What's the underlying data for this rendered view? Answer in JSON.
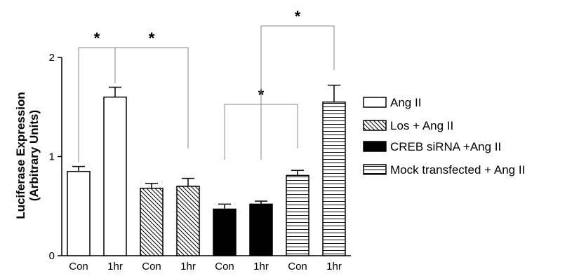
{
  "chart_data": {
    "type": "bar",
    "categories": [
      "Con",
      "1hr",
      "Con",
      "1hr",
      "Con",
      "1hr",
      "Con",
      "1hr"
    ],
    "values": [
      0.85,
      1.6,
      0.68,
      0.7,
      0.47,
      0.52,
      0.81,
      1.55
    ],
    "errors": [
      0.05,
      0.1,
      0.05,
      0.08,
      0.05,
      0.03,
      0.05,
      0.17
    ],
    "groups": [
      0,
      0,
      1,
      1,
      2,
      2,
      3,
      3
    ],
    "series": [
      {
        "name": "Ang II",
        "fill": "white"
      },
      {
        "name": "Los + Ang II",
        "fill": "diagonal-hatch"
      },
      {
        "name": "CREB siRNA +Ang II",
        "fill": "black"
      },
      {
        "name": "Mock transfected + Ang II",
        "fill": "horizontal-lines"
      }
    ],
    "ylabel_line1": "Luciferase Expression",
    "ylabel_line2": "(Arbitrary Units)",
    "ylim": [
      0,
      2
    ],
    "yticks": [
      0,
      1,
      2
    ],
    "significance": [
      {
        "from": 0,
        "to": 1,
        "label": "*"
      },
      {
        "from": 1,
        "to": 3,
        "label": "*"
      },
      {
        "from": 4,
        "to": 6,
        "label": "*"
      },
      {
        "from": 5,
        "to": 7,
        "label": "*"
      }
    ],
    "legend_position": "right",
    "colors": {
      "stroke": "#000000",
      "background": "#ffffff"
    }
  }
}
